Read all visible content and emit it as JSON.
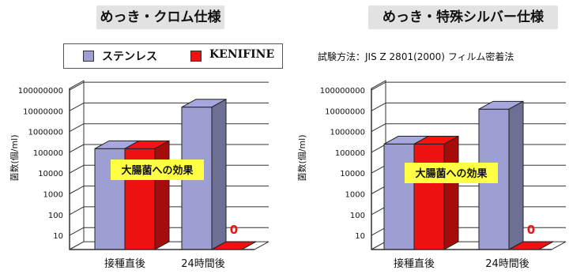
{
  "titles": {
    "left": "めっき・クロム仕様",
    "right": "めっき・特殊シルバー仕様"
  },
  "legend": {
    "stainless": "ステンレス",
    "kenifine": "KENIFINE"
  },
  "test_method": "試験方法：JIS Z 2801(2000) フィルム密着法",
  "colors": {
    "stainless": "#9d9fd3",
    "kenifine": "#ee1111",
    "label_box": "#ffff44",
    "zero_label": "#ee1111"
  },
  "chart_data": [
    {
      "type": "bar",
      "title": "めっき・クロム仕様",
      "ylabel": "菌数(個/ml)",
      "yscale": "log",
      "yticks": [
        "100000000",
        "10000000",
        "1000000",
        "100000",
        "10000",
        "1000",
        "100",
        "10"
      ],
      "categories": [
        "接種直後",
        "24時間後"
      ],
      "series": [
        {
          "name": "ステンレス",
          "values": [
            150000,
            15000000
          ]
        },
        {
          "name": "KENIFINE",
          "values": [
            150000,
            0
          ]
        }
      ],
      "annotation": "大腸菌への効果",
      "zero_label": "0"
    },
    {
      "type": "bar",
      "title": "めっき・特殊シルバー仕様",
      "ylabel": "菌数(個/ml)",
      "yscale": "log",
      "yticks": [
        "100000000",
        "10000000",
        "1000000",
        "100000",
        "10000",
        "1000",
        "100",
        "10"
      ],
      "categories": [
        "接種直後",
        "24時間後"
      ],
      "series": [
        {
          "name": "ステンレス",
          "values": [
            250000,
            12000000
          ]
        },
        {
          "name": "KENIFINE",
          "values": [
            250000,
            0
          ]
        }
      ],
      "annotation": "大腸菌への効果",
      "zero_label": "0"
    }
  ]
}
